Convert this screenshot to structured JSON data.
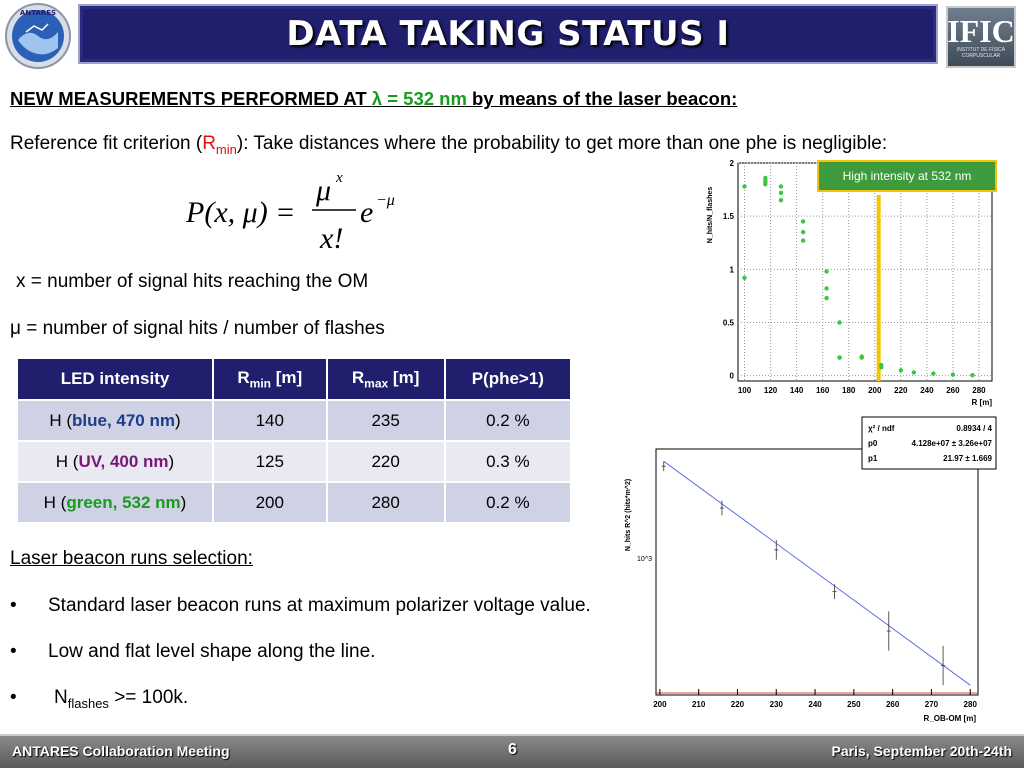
{
  "header": {
    "title": "DATA TAKING STATUS I",
    "logo_left_text": "ANTARES",
    "logo_right_big": "IFIC",
    "logo_right_small": "INSTITUT DE FÍSICA CORPUSCULAR"
  },
  "headline": {
    "part1": "NEW MEASUREMENTS PERFORMED AT ",
    "lambda": "λ = 532 nm",
    "part2": " by means of the laser beacon:"
  },
  "reference": {
    "pre": "Reference fit criterion (",
    "r": "R",
    "sub": "min",
    "post": "): Take distances where the probability to get more than one phe is negligible:"
  },
  "formula": {
    "lhs": "P(x, μ) =",
    "num": "μ",
    "num_sup": "x",
    "den": "x!",
    "exp_base": "e",
    "exp_sup": "−μ"
  },
  "definitions": {
    "x_def": "x = number of signal hits reaching the OM",
    "mu_symbol": "μ",
    "mu_def": " = number of signal hits / number of flashes"
  },
  "table": {
    "headers": [
      "LED intensity",
      "R",
      "min",
      " [m]",
      "R",
      "max",
      " [m]",
      "P(phe>1)"
    ],
    "rows": [
      {
        "pre": "H (",
        "color_text": "blue, 470 nm",
        "post": ")",
        "rmin": "140",
        "rmax": "235",
        "p": "0.2 %"
      },
      {
        "pre": "H (",
        "color_text": "UV, 400 nm",
        "post": ")",
        "rmin": "125",
        "rmax": "220",
        "p": "0.3 %"
      },
      {
        "pre": "H (",
        "color_text": "green, 532 nm",
        "post": ")",
        "rmin": "200",
        "rmax": "280",
        "p": "0.2 %"
      }
    ]
  },
  "selection": {
    "title": "Laser beacon runs selection:",
    "bullet": "•",
    "item1": "Standard laser beacon runs at maximum polarizer voltage value.",
    "item2": "Low and flat level shape along the line.",
    "item3_n": "N",
    "item3_sub": "flashes",
    "item3_post": " >= 100k."
  },
  "chart_data": [
    {
      "type": "scatter",
      "xlabel": "R [m]",
      "ylabel": "N_hits/N_flashes",
      "xlim": [
        95,
        290
      ],
      "ylim": [
        -0.05,
        2.0
      ],
      "x_ticks": [
        "100",
        "120",
        "140",
        "160",
        "180",
        "200",
        "220",
        "240",
        "260",
        "280"
      ],
      "y_ticks": [
        "0",
        "0.5",
        "1",
        "1.5",
        "2"
      ],
      "annotation": "High intensity at 532 nm",
      "marker_line_x": 203,
      "color": "#3ec43e",
      "x": [
        100,
        100,
        116,
        116,
        116,
        116,
        128,
        128,
        128,
        145,
        145,
        145,
        163,
        163,
        163,
        173,
        173,
        173,
        190,
        190,
        205,
        205,
        220,
        230,
        245,
        260,
        275
      ],
      "y": [
        1.78,
        0.92,
        1.86,
        1.84,
        1.82,
        1.8,
        1.78,
        1.72,
        1.65,
        1.45,
        1.35,
        1.27,
        0.98,
        0.82,
        0.73,
        0.5,
        0.17,
        0.17,
        0.18,
        0.17,
        0.1,
        0.08,
        0.05,
        0.03,
        0.02,
        0.01,
        0.005
      ]
    },
    {
      "type": "scatter",
      "xlabel": "R_OB-OM [m]",
      "ylabel": "N_hits R^2 (hits*m^2)",
      "xlim": [
        199,
        282
      ],
      "x_ticks": [
        "200",
        "210",
        "220",
        "230",
        "240",
        "250",
        "260",
        "270",
        "280"
      ],
      "y_tick_label": "10^3",
      "fit_stats": {
        "label1": "χ² / ndf",
        "value1": "0.8934 / 4",
        "label2": "p0",
        "value2": "4.128e+07 ± 3.26e+07",
        "label3": "p1",
        "value3": "21.97 ± 1.669"
      },
      "points": [
        {
          "x": 201,
          "y": 0.93,
          "err": 0.02
        },
        {
          "x": 216,
          "y": 0.76,
          "err": 0.03
        },
        {
          "x": 230,
          "y": 0.59,
          "err": 0.04
        },
        {
          "x": 245,
          "y": 0.42,
          "err": 0.03
        },
        {
          "x": 259,
          "y": 0.26,
          "err": 0.08
        },
        {
          "x": 273,
          "y": 0.12,
          "err": 0.08
        }
      ],
      "fit_line": {
        "x": [
          201,
          280
        ],
        "y": [
          0.95,
          0.04
        ]
      }
    }
  ],
  "footer": {
    "left": "ANTARES Collaboration Meeting",
    "page": "6",
    "right": "Paris, September 20th-24th"
  }
}
